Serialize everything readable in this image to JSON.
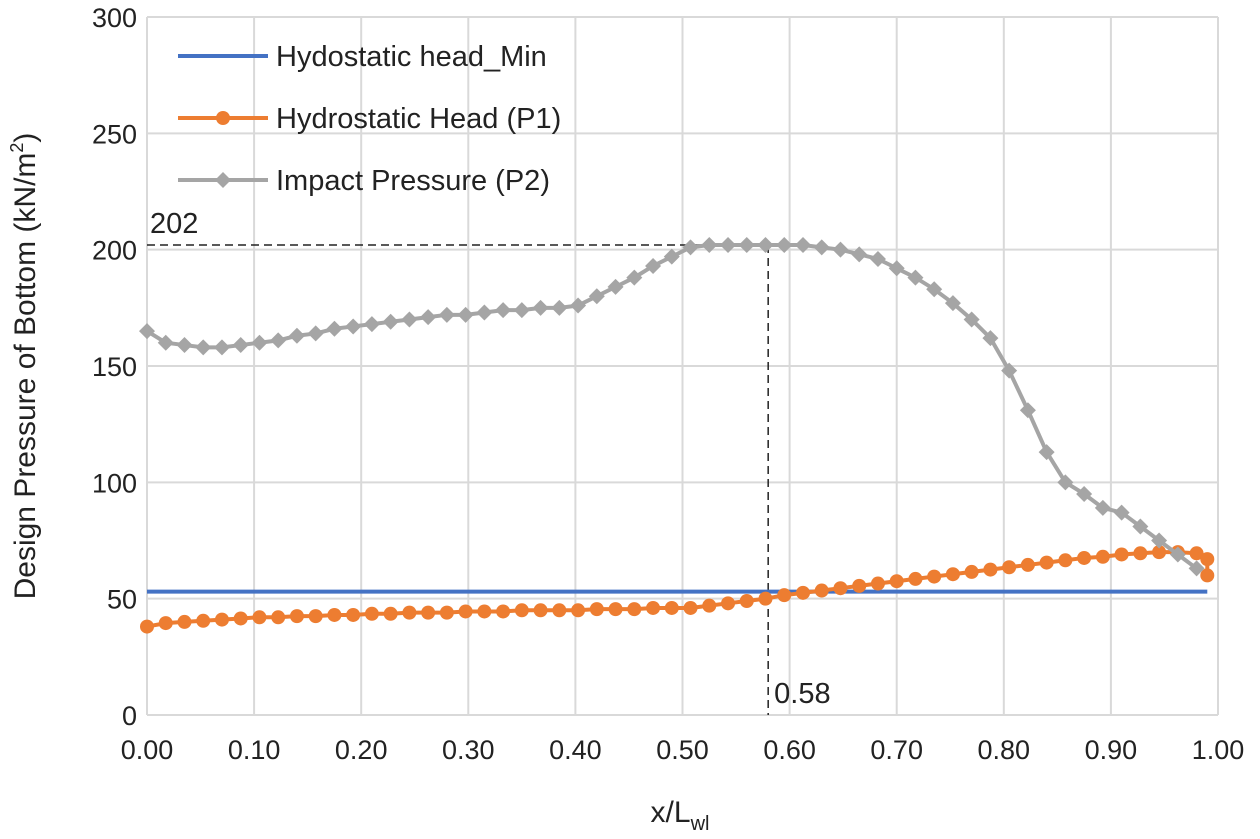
{
  "chart_data": {
    "type": "line",
    "title": "",
    "xlabel": "x/L",
    "xlabel_sub": "wl",
    "ylabel": "Design Pressure of Bottom (kN/m",
    "ylabel_sup": "2",
    "ylabel_end": ")",
    "xlim": [
      0,
      1
    ],
    "ylim": [
      0,
      300
    ],
    "grid": true,
    "legend_position": "top-left",
    "x_ticks": [
      "0.00",
      "0.10",
      "0.20",
      "0.30",
      "0.40",
      "0.50",
      "0.60",
      "0.70",
      "0.80",
      "0.90",
      "1.00"
    ],
    "y_ticks": [
      "0",
      "50",
      "100",
      "150",
      "200",
      "250",
      "300"
    ],
    "series": [
      {
        "name": "Hydostatic head_Min",
        "color": "#4472C4",
        "marker": "none",
        "x": [
          0,
          0.99
        ],
        "values": [
          53,
          53
        ]
      },
      {
        "name": "Hydrostatic Head (P1)",
        "color": "#ED7D31",
        "marker": "circle",
        "values": [
          38,
          39.5,
          40,
          40.5,
          41,
          41.5,
          42,
          42,
          42.5,
          42.5,
          43,
          43,
          43.5,
          43.5,
          44,
          44,
          44,
          44.5,
          44.5,
          44.5,
          45,
          45,
          45,
          45,
          45.5,
          45.5,
          45.5,
          46,
          46,
          46,
          47,
          48,
          49,
          50,
          51.5,
          52.5,
          53.5,
          54.5,
          55.5,
          56.5,
          57.5,
          58.5,
          59.5,
          60.5,
          61.5,
          62.5,
          63.5,
          64.5,
          65.5,
          66.5,
          67.5,
          68,
          69,
          69.5,
          70,
          70,
          69.5,
          67,
          60
        ]
      },
      {
        "name": "Impact Pressure (P2)",
        "color": "#A5A5A5",
        "marker": "diamond",
        "values": [
          165,
          160,
          159,
          158,
          158,
          159,
          160,
          161,
          163,
          164,
          166,
          167,
          168,
          169,
          170,
          171,
          172,
          172,
          173,
          174,
          174,
          175,
          175,
          176,
          180,
          184,
          188,
          193,
          197,
          201,
          202,
          202,
          202,
          202,
          202,
          202,
          201,
          200,
          198,
          196,
          192,
          188,
          183,
          177,
          170,
          162,
          148,
          131,
          113,
          100,
          95,
          89,
          87,
          81,
          75,
          69,
          63
        ]
      }
    ],
    "annotations": [
      {
        "text": "202",
        "value": 202,
        "axis": "y"
      },
      {
        "text": "0.58",
        "value": 0.58,
        "axis": "x"
      }
    ]
  }
}
